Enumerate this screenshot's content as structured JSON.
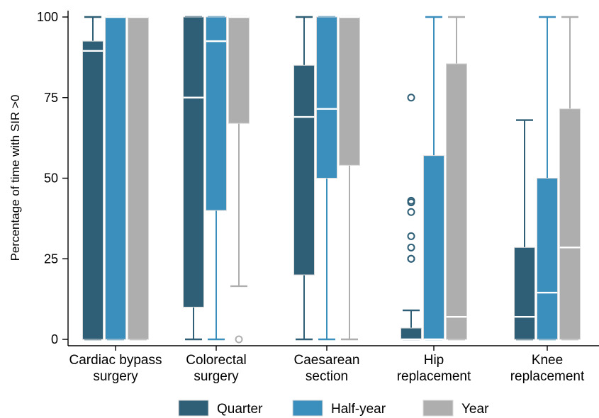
{
  "chart_data": {
    "type": "boxplot",
    "ylabel": "Percentage of time with SIR >0",
    "ylim": [
      0,
      100
    ],
    "yticks": [
      "0",
      "25",
      "50",
      "75",
      "100"
    ],
    "categories": [
      [
        "Cardiac bypass",
        "surgery"
      ],
      [
        "Colorectal",
        "surgery"
      ],
      [
        "Caesarean",
        "section"
      ],
      [
        "Hip",
        "replacement"
      ],
      [
        "Knee",
        "replacement"
      ]
    ],
    "legend": {
      "position": "bottom"
    },
    "series": [
      {
        "name": "Quarter",
        "color": "#2f5f76",
        "boxes": [
          {
            "whisker_low": 0,
            "q1": 0,
            "median": 89.5,
            "q3": 92.5,
            "whisker_high": 100,
            "outliers": []
          },
          {
            "whisker_low": 0,
            "q1": 10,
            "median": 75,
            "q3": 100,
            "whisker_high": 100,
            "outliers": []
          },
          {
            "whisker_low": 0,
            "q1": 20,
            "median": 69,
            "q3": 85,
            "whisker_high": 100,
            "outliers": []
          },
          {
            "whisker_low": 0,
            "q1": 0,
            "median": 0,
            "q3": 3.5,
            "whisker_high": 9,
            "outliers": [
              25,
              25,
              28.5,
              32,
              39.5,
              42.5,
              43,
              75
            ]
          },
          {
            "whisker_low": 0,
            "q1": 0,
            "median": 7,
            "q3": 28.5,
            "whisker_high": 68,
            "outliers": []
          }
        ]
      },
      {
        "name": "Half-year",
        "color": "#3a8fbd",
        "boxes": [
          {
            "whisker_low": 0,
            "q1": 0,
            "median": 100,
            "q3": 100,
            "whisker_high": 100,
            "outliers": []
          },
          {
            "whisker_low": 0,
            "q1": 40,
            "median": 92.5,
            "q3": 100,
            "whisker_high": 100,
            "outliers": []
          },
          {
            "whisker_low": 0,
            "q1": 50,
            "median": 71.5,
            "q3": 100,
            "whisker_high": 100,
            "outliers": []
          },
          {
            "whisker_low": 0,
            "q1": 0,
            "median": 0,
            "q3": 57,
            "whisker_high": 100,
            "outliers": []
          },
          {
            "whisker_low": 0,
            "q1": 0,
            "median": 14.5,
            "q3": 50,
            "whisker_high": 100,
            "outliers": []
          }
        ]
      },
      {
        "name": "Year",
        "color": "#aeaeae",
        "boxes": [
          {
            "whisker_low": 0,
            "q1": 0,
            "median": 100,
            "q3": 100,
            "whisker_high": 100,
            "outliers": []
          },
          {
            "whisker_low": 16.5,
            "q1": 67,
            "median": 100,
            "q3": 100,
            "whisker_high": 100,
            "outliers": [
              0
            ]
          },
          {
            "whisker_low": 0,
            "q1": 54,
            "median": 100,
            "q3": 100,
            "whisker_high": 100,
            "outliers": []
          },
          {
            "whisker_low": 0,
            "q1": 0,
            "median": 7,
            "q3": 85.5,
            "whisker_high": 100,
            "outliers": []
          },
          {
            "whisker_low": 0,
            "q1": 0,
            "median": 28.5,
            "q3": 71.5,
            "whisker_high": 100,
            "outliers": []
          }
        ]
      }
    ]
  }
}
